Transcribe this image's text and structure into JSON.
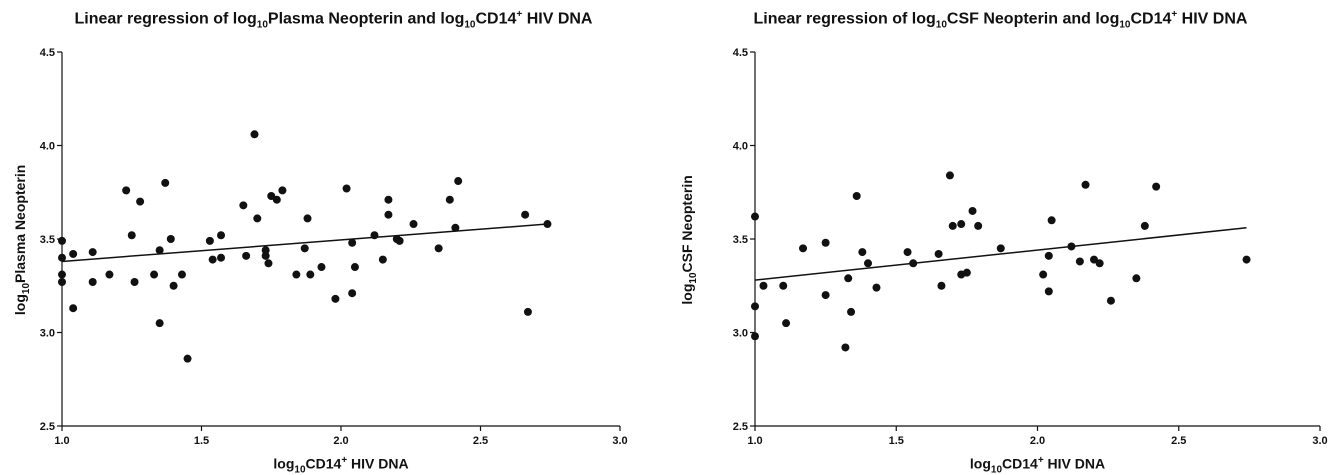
{
  "chart_data": [
    {
      "type": "scatter",
      "title": {
        "pre": "Linear regression of log",
        "sub1": "10",
        "mid": "Plasma Neopterin and log",
        "sub2": "10",
        "mid2": "CD14",
        "sup": "+",
        "post": " HIV DNA"
      },
      "xlabel": {
        "pre": "log",
        "sub": "10",
        "mid": "CD14",
        "sup": "+",
        "post": " HIV DNA"
      },
      "ylabel": {
        "pre": "log",
        "sub": "10",
        "post": "Plasma Neopterin"
      },
      "xlim": [
        1.0,
        3.0
      ],
      "ylim": [
        2.5,
        4.5
      ],
      "xticks": [
        "1.0",
        "1.5",
        "2.0",
        "2.5",
        "3.0"
      ],
      "yticks": [
        "2.5",
        "3.0",
        "3.5",
        "4.0",
        "4.5"
      ],
      "regression_line": {
        "x": [
          1.0,
          2.74
        ],
        "y": [
          3.38,
          3.58
        ]
      },
      "points": [
        [
          1.0,
          3.49
        ],
        [
          1.0,
          3.4
        ],
        [
          1.0,
          3.31
        ],
        [
          1.0,
          3.27
        ],
        [
          1.04,
          3.42
        ],
        [
          1.04,
          3.13
        ],
        [
          1.11,
          3.43
        ],
        [
          1.11,
          3.27
        ],
        [
          1.17,
          3.31
        ],
        [
          1.23,
          3.76
        ],
        [
          1.25,
          3.52
        ],
        [
          1.26,
          3.27
        ],
        [
          1.28,
          3.7
        ],
        [
          1.33,
          3.31
        ],
        [
          1.35,
          3.44
        ],
        [
          1.35,
          3.05
        ],
        [
          1.37,
          3.8
        ],
        [
          1.39,
          3.5
        ],
        [
          1.4,
          3.25
        ],
        [
          1.43,
          3.31
        ],
        [
          1.45,
          2.86
        ],
        [
          1.53,
          3.49
        ],
        [
          1.54,
          3.39
        ],
        [
          1.57,
          3.52
        ],
        [
          1.57,
          3.4
        ],
        [
          1.65,
          3.68
        ],
        [
          1.66,
          3.41
        ],
        [
          1.69,
          4.06
        ],
        [
          1.7,
          3.61
        ],
        [
          1.73,
          3.44
        ],
        [
          1.73,
          3.41
        ],
        [
          1.74,
          3.37
        ],
        [
          1.75,
          3.73
        ],
        [
          1.77,
          3.71
        ],
        [
          1.79,
          3.76
        ],
        [
          1.84,
          3.31
        ],
        [
          1.87,
          3.45
        ],
        [
          1.88,
          3.61
        ],
        [
          1.89,
          3.31
        ],
        [
          1.93,
          3.35
        ],
        [
          1.98,
          3.18
        ],
        [
          2.02,
          3.77
        ],
        [
          2.04,
          3.21
        ],
        [
          2.04,
          3.48
        ],
        [
          2.05,
          3.35
        ],
        [
          2.12,
          3.52
        ],
        [
          2.15,
          3.39
        ],
        [
          2.17,
          3.71
        ],
        [
          2.17,
          3.63
        ],
        [
          2.2,
          3.5
        ],
        [
          2.21,
          3.49
        ],
        [
          2.26,
          3.58
        ],
        [
          2.35,
          3.45
        ],
        [
          2.39,
          3.71
        ],
        [
          2.41,
          3.56
        ],
        [
          2.42,
          3.81
        ],
        [
          2.66,
          3.63
        ],
        [
          2.67,
          3.11
        ],
        [
          2.74,
          3.58
        ]
      ]
    },
    {
      "type": "scatter",
      "title": {
        "pre": "Linear regression of log",
        "sub1": "10",
        "mid": "CSF Neopterin and log",
        "sub2": "10",
        "mid2": "CD14",
        "sup": "+",
        "post": " HIV DNA"
      },
      "xlabel": {
        "pre": "log",
        "sub": "10",
        "mid": "CD14",
        "sup": "+",
        "post": " HIV DNA"
      },
      "ylabel": {
        "pre": "log",
        "sub": "10",
        "post": "CSF Neopterin"
      },
      "xlim": [
        1.0,
        3.0
      ],
      "ylim": [
        2.5,
        4.5
      ],
      "xticks": [
        "1.0",
        "1.5",
        "2.0",
        "2.5",
        "3.0"
      ],
      "yticks": [
        "2.5",
        "3.0",
        "3.5",
        "4.0",
        "4.5"
      ],
      "regression_line": {
        "x": [
          1.0,
          2.74
        ],
        "y": [
          3.28,
          3.56
        ]
      },
      "points": [
        [
          1.0,
          3.62
        ],
        [
          1.0,
          3.14
        ],
        [
          1.0,
          2.98
        ],
        [
          1.03,
          3.25
        ],
        [
          1.1,
          3.25
        ],
        [
          1.11,
          3.05
        ],
        [
          1.17,
          3.45
        ],
        [
          1.25,
          3.48
        ],
        [
          1.25,
          3.2
        ],
        [
          1.32,
          2.92
        ],
        [
          1.33,
          3.29
        ],
        [
          1.34,
          3.11
        ],
        [
          1.36,
          3.73
        ],
        [
          1.38,
          3.43
        ],
        [
          1.4,
          3.37
        ],
        [
          1.43,
          3.24
        ],
        [
          1.54,
          3.43
        ],
        [
          1.56,
          3.37
        ],
        [
          1.65,
          3.42
        ],
        [
          1.66,
          3.25
        ],
        [
          1.69,
          3.84
        ],
        [
          1.7,
          3.57
        ],
        [
          1.73,
          3.58
        ],
        [
          1.73,
          3.31
        ],
        [
          1.75,
          3.32
        ],
        [
          1.77,
          3.65
        ],
        [
          1.79,
          3.57
        ],
        [
          1.87,
          3.45
        ],
        [
          2.02,
          3.31
        ],
        [
          2.04,
          3.22
        ],
        [
          2.04,
          3.41
        ],
        [
          2.05,
          3.6
        ],
        [
          2.12,
          3.46
        ],
        [
          2.15,
          3.38
        ],
        [
          2.17,
          3.79
        ],
        [
          2.2,
          3.39
        ],
        [
          2.22,
          3.37
        ],
        [
          2.26,
          3.17
        ],
        [
          2.35,
          3.29
        ],
        [
          2.38,
          3.57
        ],
        [
          2.42,
          3.78
        ],
        [
          2.74,
          3.39
        ]
      ]
    }
  ]
}
